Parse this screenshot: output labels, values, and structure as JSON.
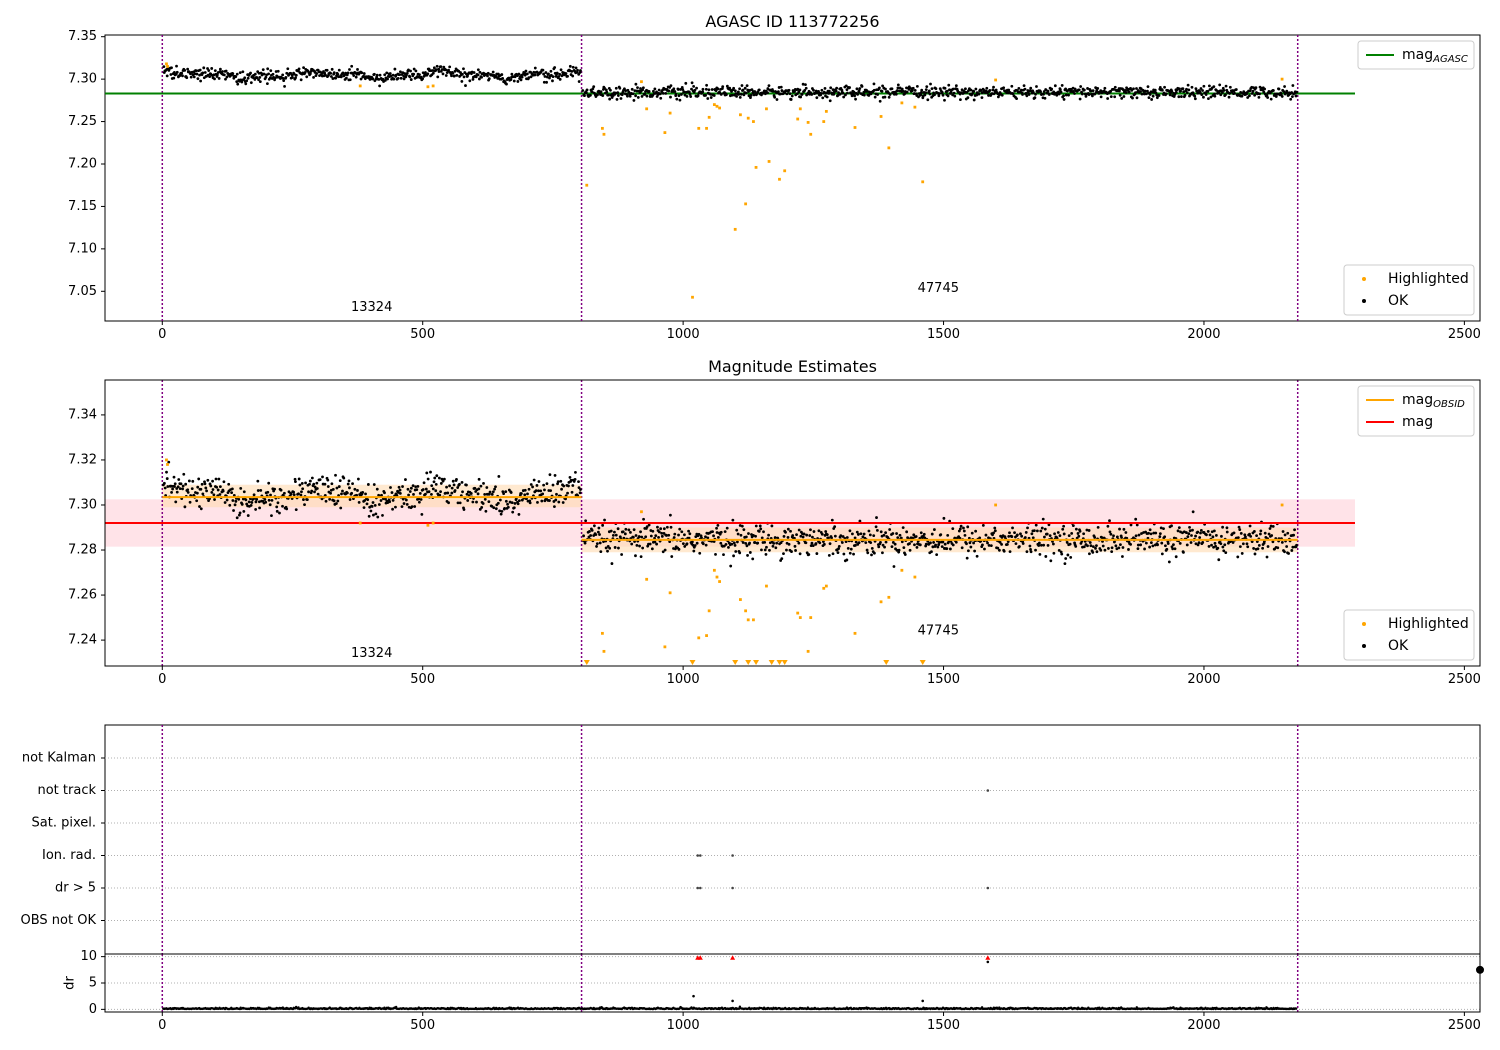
{
  "colors": {
    "ok": "#000000",
    "highlighted": "#ffa500",
    "mag_agasc": "#008000",
    "mag": "#ff0000",
    "mag_obsid": "#ffa500",
    "mag_band": "#ffc0cb",
    "obsid_band": "#ffdab0",
    "obs_boundary": "#800080",
    "flag_dr": "#ff0000"
  },
  "chart_data": [
    {
      "type": "scatter",
      "title": "AGASC ID 113772256",
      "xlim": [
        -110,
        2530
      ],
      "ylim": [
        7.015,
        7.352
      ],
      "x_ticks": [
        0,
        500,
        1000,
        1500,
        2000,
        2500
      ],
      "y_ticks": [
        7.05,
        7.1,
        7.15,
        7.2,
        7.25,
        7.3,
        7.35
      ],
      "obs_boundaries": [
        0,
        805,
        2180
      ],
      "obs_labels": [
        {
          "text": "13324",
          "x": 402,
          "y": 7.027
        },
        {
          "text": "47745",
          "x": 1490,
          "y": 7.049
        }
      ],
      "segments": [
        {
          "x0": 0,
          "x1": 805,
          "mean": 7.3045,
          "sd": 0.0035,
          "wavy": true
        },
        {
          "x0": 805,
          "x1": 2180,
          "mean": 7.2845,
          "sd": 0.0035,
          "wavy": false
        }
      ],
      "lines": [
        {
          "name": "mag<sub>AGASC</sub>",
          "y": 7.283,
          "x0": -110,
          "x1": 2290,
          "color_key": "mag_agasc"
        }
      ],
      "highlighted": {
        "x": [
          8,
          10,
          380,
          510,
          520,
          815,
          845,
          848,
          920,
          930,
          965,
          975,
          1018,
          1030,
          1045,
          1050,
          1060,
          1065,
          1070,
          1100,
          1110,
          1120,
          1125,
          1135,
          1140,
          1160,
          1165,
          1185,
          1195,
          1220,
          1225,
          1240,
          1245,
          1270,
          1275,
          1330,
          1380,
          1395,
          1420,
          1445,
          1460,
          1600,
          2150
        ],
        "y": [
          7.318,
          7.315,
          7.292,
          7.291,
          7.292,
          7.175,
          7.242,
          7.235,
          7.297,
          7.265,
          7.237,
          7.26,
          7.043,
          7.242,
          7.242,
          7.255,
          7.27,
          7.268,
          7.266,
          7.123,
          7.258,
          7.153,
          7.254,
          7.25,
          7.196,
          7.265,
          7.203,
          7.182,
          7.192,
          7.253,
          7.265,
          7.249,
          7.235,
          7.25,
          7.262,
          7.243,
          7.256,
          7.219,
          7.272,
          7.267,
          7.179,
          7.299,
          7.3
        ]
      },
      "legends": [
        {
          "position": "upper-right",
          "items": [
            {
              "label": "mag<sub>AGASC</sub>",
              "kind": "line",
              "color_key": "mag_agasc"
            }
          ]
        },
        {
          "position": "lower-right",
          "items": [
            {
              "label": "Highlighted",
              "kind": "dot",
              "color_key": "highlighted"
            },
            {
              "label": "OK",
              "kind": "dot",
              "color_key": "ok"
            }
          ]
        }
      ]
    },
    {
      "type": "scatter",
      "title": "Magnitude Estimates",
      "xlim": [
        -110,
        2530
      ],
      "ylim": [
        7.2285,
        7.3555
      ],
      "x_ticks": [
        0,
        500,
        1000,
        1500,
        2000,
        2500
      ],
      "y_ticks": [
        7.24,
        7.26,
        7.28,
        7.3,
        7.32,
        7.34
      ],
      "obs_boundaries": [
        0,
        805,
        2180
      ],
      "obs_labels": [
        {
          "text": "13324",
          "x": 402,
          "y": 7.2325
        },
        {
          "text": "47745",
          "x": 1490,
          "y": 7.2425
        }
      ],
      "segments": [
        {
          "x0": 0,
          "x1": 805,
          "mean": 7.3045,
          "sd": 0.0035,
          "wavy": true
        },
        {
          "x0": 805,
          "x1": 2180,
          "mean": 7.2845,
          "sd": 0.0035,
          "wavy": false
        }
      ],
      "bands": [
        {
          "x0": -110,
          "x1": 2290,
          "y0": 7.2815,
          "y1": 7.3025,
          "color_key": "mag_band",
          "opacity": 0.45
        },
        {
          "x0": 0,
          "x1": 805,
          "y0": 7.299,
          "y1": 7.309,
          "color_key": "obsid_band",
          "opacity": 0.6
        },
        {
          "x0": 805,
          "x1": 2180,
          "y0": 7.279,
          "y1": 7.29,
          "color_key": "obsid_band",
          "opacity": 0.6
        }
      ],
      "lines": [
        {
          "name": "mag",
          "y": 7.292,
          "x0": -110,
          "x1": 2290,
          "color_key": "mag"
        },
        {
          "name": "mag<sub>OBSID</sub>",
          "y": 7.3035,
          "x0": 0,
          "x1": 805,
          "color_key": "mag_obsid"
        },
        {
          "name": "mag<sub>OBSID</sub>",
          "y": 7.2845,
          "x0": 805,
          "x1": 2180,
          "color_key": "mag_obsid"
        }
      ],
      "highlighted": {
        "x": [
          8,
          10,
          380,
          510,
          520,
          845,
          848,
          920,
          930,
          965,
          975,
          1030,
          1045,
          1050,
          1060,
          1065,
          1070,
          1110,
          1120,
          1125,
          1135,
          1160,
          1220,
          1225,
          1240,
          1245,
          1270,
          1275,
          1330,
          1380,
          1395,
          1420,
          1445,
          1600,
          2150
        ],
        "y": [
          7.32,
          7.318,
          7.292,
          7.291,
          7.292,
          7.243,
          7.235,
          7.297,
          7.267,
          7.237,
          7.261,
          7.241,
          7.242,
          7.253,
          7.271,
          7.268,
          7.266,
          7.258,
          7.253,
          7.249,
          7.249,
          7.264,
          7.252,
          7.25,
          7.235,
          7.25,
          7.263,
          7.264,
          7.243,
          7.257,
          7.259,
          7.271,
          7.268,
          7.3,
          7.3
        ]
      },
      "clipped_low": [
        815,
        1018,
        1100,
        1125,
        1140,
        1170,
        1185,
        1195,
        1390,
        1460
      ],
      "legends": [
        {
          "position": "upper-right",
          "items": [
            {
              "label": "mag<sub>OBSID</sub>",
              "kind": "line",
              "color_key": "mag_obsid"
            },
            {
              "label": "mag",
              "kind": "line",
              "color_key": "mag"
            }
          ]
        },
        {
          "position": "lower-right",
          "items": [
            {
              "label": "Highlighted",
              "kind": "dot",
              "color_key": "highlighted"
            },
            {
              "label": "OK",
              "kind": "dot",
              "color_key": "ok"
            }
          ]
        }
      ]
    },
    {
      "type": "scatter",
      "title": "",
      "xlim": [
        -110,
        2530
      ],
      "categories": [
        "not Kalman",
        "not track",
        "Sat. pixel.",
        "Ion. rad.",
        "dr > 5",
        "OBS not OK"
      ],
      "obs_boundaries": [
        0,
        805,
        2180
      ],
      "flags": [
        {
          "category": "not track",
          "x": [
            1585
          ]
        },
        {
          "category": "Ion. rad.",
          "x": [
            1028,
            1033,
            1095
          ]
        },
        {
          "category": "dr > 5",
          "x": [
            1028,
            1033,
            1095,
            1585
          ]
        }
      ]
    },
    {
      "type": "scatter",
      "title": "",
      "ylabel": "dr",
      "xlim": [
        -110,
        2530
      ],
      "ylim": [
        -0.5,
        10.5
      ],
      "x_ticks": [
        0,
        500,
        1000,
        1500,
        2000,
        2500
      ],
      "y_ticks": [
        0,
        5,
        10
      ],
      "obs_boundaries": [
        0,
        805,
        2180
      ],
      "high_dr_markers": {
        "x": [
          1028,
          1033,
          1095,
          1585
        ],
        "y": [
          9.8,
          9.8,
          9.8,
          9.8
        ]
      },
      "outliers": {
        "x": [
          1020,
          1095,
          1460,
          1585,
          2530
        ],
        "y": [
          2.5,
          1.6,
          1.6,
          9.0,
          7.5
        ]
      }
    }
  ]
}
